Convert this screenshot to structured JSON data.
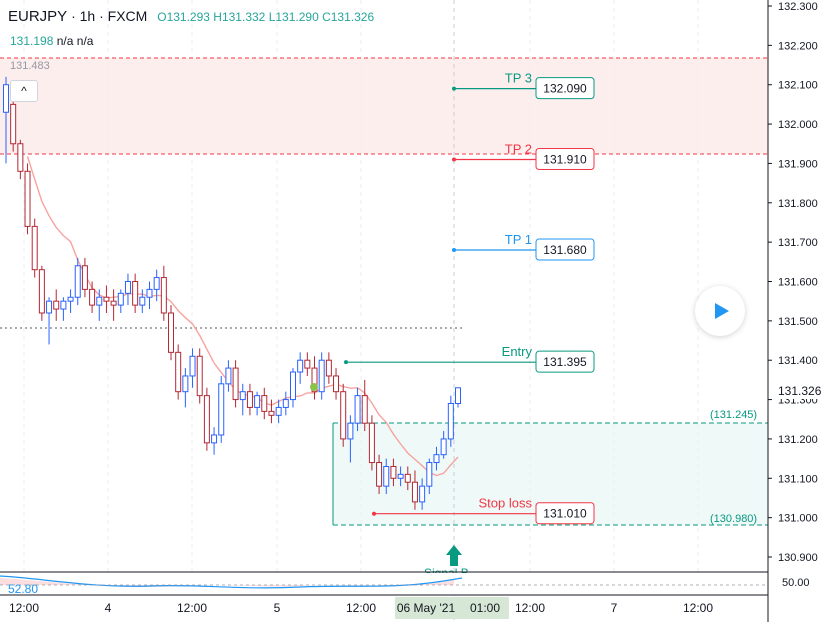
{
  "header": {
    "symbol": "EURJPY",
    "timeframe": "1h",
    "exchange": "FXCM",
    "open": "O131.293",
    "high": "H131.332",
    "low": "L131.290",
    "close": "C131.326",
    "indicator_value": "131.198",
    "na1": "n/a",
    "na2": "n/a",
    "collapse_symbol": "^"
  },
  "price_tags": {
    "left_dotted": "131.483",
    "current": "131.326",
    "zone_top": "(131.245)",
    "zone_bottom": "(130.980)"
  },
  "levels": [
    {
      "name": "TP 3",
      "value": "132.090",
      "price": 132.09,
      "color": "#089981"
    },
    {
      "name": "TP 2",
      "value": "131.910",
      "price": 131.91,
      "color": "#f23645"
    },
    {
      "name": "TP 1",
      "value": "131.680",
      "price": 131.68,
      "color": "#2196f3"
    },
    {
      "name": "Entry",
      "value": "131.395",
      "price": 131.395,
      "color": "#089981"
    },
    {
      "name": "Stop loss",
      "value": "131.010",
      "price": 131.01,
      "color": "#f23645"
    }
  ],
  "signal_label": "Signal B...",
  "oscillator_value": "52.80",
  "oscillator_axis_label": "50.00",
  "axis_y": [
    "132.300",
    "132.200",
    "132.100",
    "132.000",
    "131.900",
    "131.800",
    "131.700",
    "131.600",
    "131.500",
    "131.400",
    "131.300",
    "131.200",
    "131.100",
    "131.000",
    "130.900"
  ],
  "axis_x": [
    {
      "label": "12:00",
      "hi": false
    },
    {
      "label": "4",
      "hi": false
    },
    {
      "label": "12:00",
      "hi": false
    },
    {
      "label": "5",
      "hi": false
    },
    {
      "label": "12:00",
      "hi": false
    },
    {
      "label": "06 May '21",
      "hi": true
    },
    {
      "label": "01:00",
      "hi": true
    },
    {
      "label": "12:00",
      "hi": false
    },
    {
      "label": "7",
      "hi": false
    },
    {
      "label": "12:00",
      "hi": false
    }
  ],
  "colors": {
    "up": "#2962ff",
    "down": "#b22833",
    "ma": "#f7a3a0",
    "zone_tp": "#fdeeee",
    "zone_sl": "#e8f6f3",
    "teal": "#089981",
    "red": "#f23645",
    "blue": "#2196f3"
  },
  "chart_data": {
    "type": "candlestick",
    "ylim": [
      130.87,
      132.32
    ],
    "series": [
      {
        "o": 132.03,
        "h": 132.12,
        "l": 131.9,
        "c": 132.1
      },
      {
        "o": 132.05,
        "h": 132.1,
        "l": 131.93,
        "c": 131.95
      },
      {
        "o": 131.95,
        "h": 131.96,
        "l": 131.86,
        "c": 131.88
      },
      {
        "o": 131.88,
        "h": 131.9,
        "l": 131.72,
        "c": 131.74
      },
      {
        "o": 131.74,
        "h": 131.76,
        "l": 131.61,
        "c": 131.63
      },
      {
        "o": 131.63,
        "h": 131.64,
        "l": 131.5,
        "c": 131.52
      },
      {
        "o": 131.52,
        "h": 131.56,
        "l": 131.44,
        "c": 131.55
      },
      {
        "o": 131.55,
        "h": 131.58,
        "l": 131.5,
        "c": 131.53
      },
      {
        "o": 131.53,
        "h": 131.56,
        "l": 131.5,
        "c": 131.55
      },
      {
        "o": 131.55,
        "h": 131.58,
        "l": 131.52,
        "c": 131.56
      },
      {
        "o": 131.56,
        "h": 131.66,
        "l": 131.54,
        "c": 131.64
      },
      {
        "o": 131.64,
        "h": 131.66,
        "l": 131.56,
        "c": 131.58
      },
      {
        "o": 131.58,
        "h": 131.6,
        "l": 131.52,
        "c": 131.54
      },
      {
        "o": 131.54,
        "h": 131.58,
        "l": 131.5,
        "c": 131.56
      },
      {
        "o": 131.56,
        "h": 131.59,
        "l": 131.52,
        "c": 131.55
      },
      {
        "o": 131.55,
        "h": 131.58,
        "l": 131.5,
        "c": 131.54
      },
      {
        "o": 131.54,
        "h": 131.58,
        "l": 131.52,
        "c": 131.57
      },
      {
        "o": 131.57,
        "h": 131.62,
        "l": 131.54,
        "c": 131.6
      },
      {
        "o": 131.6,
        "h": 131.62,
        "l": 131.52,
        "c": 131.54
      },
      {
        "o": 131.54,
        "h": 131.58,
        "l": 131.52,
        "c": 131.56
      },
      {
        "o": 131.56,
        "h": 131.6,
        "l": 131.53,
        "c": 131.58
      },
      {
        "o": 131.58,
        "h": 131.63,
        "l": 131.55,
        "c": 131.61
      },
      {
        "o": 131.61,
        "h": 131.64,
        "l": 131.5,
        "c": 131.52
      },
      {
        "o": 131.52,
        "h": 131.54,
        "l": 131.4,
        "c": 131.42
      },
      {
        "o": 131.42,
        "h": 131.44,
        "l": 131.3,
        "c": 131.32
      },
      {
        "o": 131.32,
        "h": 131.38,
        "l": 131.28,
        "c": 131.36
      },
      {
        "o": 131.36,
        "h": 131.43,
        "l": 131.33,
        "c": 131.41
      },
      {
        "o": 131.41,
        "h": 131.43,
        "l": 131.29,
        "c": 131.31
      },
      {
        "o": 131.31,
        "h": 131.33,
        "l": 131.17,
        "c": 131.19
      },
      {
        "o": 131.19,
        "h": 131.23,
        "l": 131.16,
        "c": 131.21
      },
      {
        "o": 131.21,
        "h": 131.36,
        "l": 131.19,
        "c": 131.34
      },
      {
        "o": 131.34,
        "h": 131.4,
        "l": 131.32,
        "c": 131.38
      },
      {
        "o": 131.38,
        "h": 131.4,
        "l": 131.28,
        "c": 131.3
      },
      {
        "o": 131.3,
        "h": 131.34,
        "l": 131.26,
        "c": 131.32
      },
      {
        "o": 131.32,
        "h": 131.34,
        "l": 131.26,
        "c": 131.28
      },
      {
        "o": 131.28,
        "h": 131.32,
        "l": 131.26,
        "c": 131.31
      },
      {
        "o": 131.31,
        "h": 131.33,
        "l": 131.25,
        "c": 131.27
      },
      {
        "o": 131.27,
        "h": 131.3,
        "l": 131.24,
        "c": 131.26
      },
      {
        "o": 131.26,
        "h": 131.3,
        "l": 131.24,
        "c": 131.28
      },
      {
        "o": 131.28,
        "h": 131.32,
        "l": 131.26,
        "c": 131.3
      },
      {
        "o": 131.3,
        "h": 131.38,
        "l": 131.28,
        "c": 131.37
      },
      {
        "o": 131.37,
        "h": 131.42,
        "l": 131.34,
        "c": 131.4
      },
      {
        "o": 131.4,
        "h": 131.42,
        "l": 131.36,
        "c": 131.38
      },
      {
        "o": 131.38,
        "h": 131.41,
        "l": 131.3,
        "c": 131.32
      },
      {
        "o": 131.32,
        "h": 131.42,
        "l": 131.3,
        "c": 131.4
      },
      {
        "o": 131.4,
        "h": 131.42,
        "l": 131.34,
        "c": 131.36
      },
      {
        "o": 131.36,
        "h": 131.38,
        "l": 131.3,
        "c": 131.32
      },
      {
        "o": 131.32,
        "h": 131.34,
        "l": 131.18,
        "c": 131.2
      },
      {
        "o": 131.2,
        "h": 131.26,
        "l": 131.14,
        "c": 131.24
      },
      {
        "o": 131.24,
        "h": 131.33,
        "l": 131.22,
        "c": 131.31
      },
      {
        "o": 131.31,
        "h": 131.35,
        "l": 131.22,
        "c": 131.24
      },
      {
        "o": 131.24,
        "h": 131.26,
        "l": 131.12,
        "c": 131.14
      },
      {
        "o": 131.14,
        "h": 131.16,
        "l": 131.06,
        "c": 131.08
      },
      {
        "o": 131.08,
        "h": 131.15,
        "l": 131.06,
        "c": 131.13
      },
      {
        "o": 131.13,
        "h": 131.15,
        "l": 131.08,
        "c": 131.1
      },
      {
        "o": 131.1,
        "h": 131.13,
        "l": 131.08,
        "c": 131.11
      },
      {
        "o": 131.11,
        "h": 131.13,
        "l": 131.07,
        "c": 131.09
      },
      {
        "o": 131.09,
        "h": 131.12,
        "l": 131.02,
        "c": 131.04
      },
      {
        "o": 131.04,
        "h": 131.1,
        "l": 131.02,
        "c": 131.08
      },
      {
        "o": 131.08,
        "h": 131.15,
        "l": 131.06,
        "c": 131.14
      },
      {
        "o": 131.14,
        "h": 131.18,
        "l": 131.12,
        "c": 131.16
      },
      {
        "o": 131.16,
        "h": 131.22,
        "l": 131.15,
        "c": 131.2
      },
      {
        "o": 131.2,
        "h": 131.31,
        "l": 131.18,
        "c": 131.29
      },
      {
        "o": 131.29,
        "h": 131.33,
        "l": 131.28,
        "c": 131.33
      }
    ]
  }
}
